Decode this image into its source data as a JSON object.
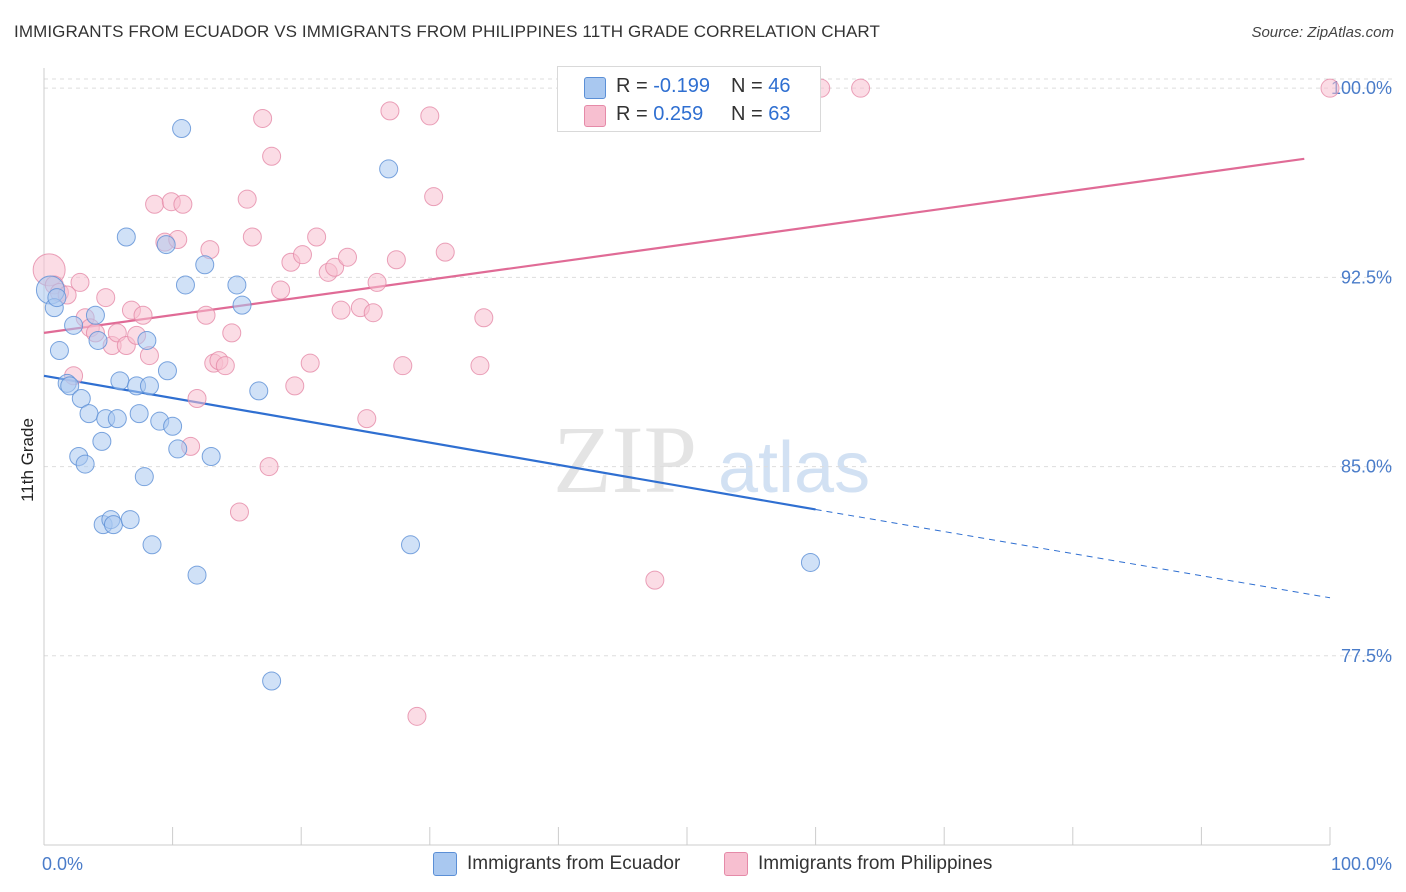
{
  "title": "IMMIGRANTS FROM ECUADOR VS IMMIGRANTS FROM PHILIPPINES 11TH GRADE CORRELATION CHART",
  "source": "Source: ZipAtlas.com",
  "watermark": {
    "zip": "ZIP",
    "atlas": "atlas"
  },
  "colors": {
    "ecuador_fill": "#a9c8f0",
    "ecuador_stroke": "#5b8fd6",
    "ecuador_line": "#2f6fd1",
    "philippines_fill": "#f7bfd0",
    "philippines_stroke": "#e58aa8",
    "philippines_line": "#e06b96",
    "tick_label": "#4a7cc9",
    "grid": "#dddddd"
  },
  "legend_top": {
    "rows": [
      {
        "r_label": "R =",
        "r_value": "-0.199",
        "n_label": "N =",
        "n_value": "46"
      },
      {
        "r_label": "R =",
        "r_value": "0.259",
        "n_label": "N =",
        "n_value": "63"
      }
    ]
  },
  "legend_bottom": [
    {
      "label": "Immigrants from Ecuador"
    },
    {
      "label": "Immigrants from Philippines"
    }
  ],
  "chart_data": {
    "type": "scatter",
    "title": "IMMIGRANTS FROM ECUADOR VS IMMIGRANTS FROM PHILIPPINES 11TH GRADE CORRELATION CHART",
    "xlabel": "",
    "ylabel": "11th Grade",
    "xlim": [
      0,
      100
    ],
    "ylim": [
      70.0,
      100.8
    ],
    "x_tick_labels": [
      {
        "value": 0,
        "label": "0.0%"
      },
      {
        "value": 100,
        "label": "100.0%"
      }
    ],
    "y_ticks": [
      {
        "value": 77.5,
        "label": "77.5%"
      },
      {
        "value": 85.0,
        "label": "85.0%"
      },
      {
        "value": 92.5,
        "label": "92.5%"
      },
      {
        "value": 100.0,
        "label": "100.0%"
      }
    ],
    "grid": true,
    "legend_position": "top-center",
    "series": [
      {
        "name": "Immigrants from Ecuador",
        "r": -0.199,
        "n": 46,
        "trend": {
          "x0": 0,
          "y0": 88.6,
          "x1": 60,
          "y1": 83.3,
          "dashed_to_x": 100,
          "dashed_to_y": 79.8
        },
        "points": [
          [
            0.5,
            92.0,
            14
          ],
          [
            0.8,
            91.3,
            9
          ],
          [
            1.2,
            89.6,
            9
          ],
          [
            1.8,
            88.3,
            9
          ],
          [
            2.0,
            88.2,
            9
          ],
          [
            2.3,
            90.6,
            9
          ],
          [
            2.7,
            85.4,
            9
          ],
          [
            2.9,
            87.7,
            9
          ],
          [
            3.2,
            85.1,
            9
          ],
          [
            3.5,
            87.1,
            9
          ],
          [
            4.0,
            91.0,
            9
          ],
          [
            4.2,
            90.0,
            9
          ],
          [
            4.5,
            86.0,
            9
          ],
          [
            4.6,
            82.7,
            9
          ],
          [
            4.8,
            86.9,
            9
          ],
          [
            5.2,
            82.9,
            9
          ],
          [
            5.4,
            82.7,
            9
          ],
          [
            5.7,
            86.9,
            9
          ],
          [
            5.9,
            88.4,
            9
          ],
          [
            6.4,
            94.1,
            9
          ],
          [
            6.7,
            82.9,
            9
          ],
          [
            7.2,
            88.2,
            9
          ],
          [
            7.4,
            87.1,
            9
          ],
          [
            7.8,
            84.6,
            9
          ],
          [
            8.0,
            90.0,
            9
          ],
          [
            8.2,
            88.2,
            9
          ],
          [
            8.4,
            81.9,
            9
          ],
          [
            9.0,
            86.8,
            9
          ],
          [
            9.5,
            93.8,
            9
          ],
          [
            9.6,
            88.8,
            9
          ],
          [
            10.0,
            86.6,
            9
          ],
          [
            10.4,
            85.7,
            9
          ],
          [
            10.7,
            98.4,
            9
          ],
          [
            11.0,
            92.2,
            9
          ],
          [
            11.9,
            80.7,
            9
          ],
          [
            12.5,
            93.0,
            9
          ],
          [
            13.0,
            85.4,
            9
          ],
          [
            15.0,
            92.2,
            9
          ],
          [
            15.4,
            91.4,
            9
          ],
          [
            16.7,
            88.0,
            9
          ],
          [
            17.7,
            76.5,
            9
          ],
          [
            26.8,
            96.8,
            9
          ],
          [
            28.5,
            81.9,
            9
          ],
          [
            59.6,
            81.2,
            9
          ],
          [
            1.0,
            91.7,
            9
          ],
          [
            3.0,
            86.9,
            0
          ]
        ]
      },
      {
        "name": "Immigrants from Philippines",
        "r": 0.259,
        "n": 63,
        "trend": {
          "x0": 0,
          "y0": 90.3,
          "x1": 98,
          "y1": 97.2
        },
        "points": [
          [
            0.4,
            92.8,
            16
          ],
          [
            0.8,
            92.2,
            9
          ],
          [
            1.2,
            91.9,
            9
          ],
          [
            1.8,
            91.8,
            9
          ],
          [
            2.3,
            88.6,
            9
          ],
          [
            2.8,
            92.3,
            9
          ],
          [
            3.2,
            90.9,
            9
          ],
          [
            3.6,
            90.5,
            9
          ],
          [
            4.0,
            90.3,
            9
          ],
          [
            4.8,
            91.7,
            9
          ],
          [
            5.3,
            89.8,
            9
          ],
          [
            5.7,
            90.3,
            9
          ],
          [
            6.4,
            89.8,
            9
          ],
          [
            6.8,
            91.2,
            9
          ],
          [
            7.2,
            90.2,
            9
          ],
          [
            7.7,
            91.0,
            9
          ],
          [
            8.2,
            89.4,
            9
          ],
          [
            8.6,
            95.4,
            9
          ],
          [
            9.4,
            93.9,
            9
          ],
          [
            9.9,
            95.5,
            9
          ],
          [
            10.4,
            94.0,
            9
          ],
          [
            10.8,
            95.4,
            9
          ],
          [
            11.4,
            85.8,
            9
          ],
          [
            11.9,
            87.7,
            9
          ],
          [
            12.6,
            91.0,
            9
          ],
          [
            12.9,
            93.6,
            9
          ],
          [
            13.2,
            89.1,
            9
          ],
          [
            13.6,
            89.2,
            9
          ],
          [
            14.1,
            89.0,
            9
          ],
          [
            14.6,
            90.3,
            9
          ],
          [
            15.2,
            83.2,
            9
          ],
          [
            15.8,
            95.6,
            9
          ],
          [
            16.2,
            94.1,
            9
          ],
          [
            17.0,
            98.8,
            9
          ],
          [
            17.5,
            85.0,
            9
          ],
          [
            17.7,
            97.3,
            9
          ],
          [
            18.4,
            92.0,
            9
          ],
          [
            19.2,
            93.1,
            9
          ],
          [
            19.5,
            88.2,
            9
          ],
          [
            20.1,
            93.4,
            9
          ],
          [
            20.7,
            89.1,
            9
          ],
          [
            21.2,
            94.1,
            9
          ],
          [
            22.1,
            92.7,
            9
          ],
          [
            22.6,
            92.9,
            9
          ],
          [
            23.1,
            91.2,
            9
          ],
          [
            23.6,
            93.3,
            9
          ],
          [
            24.6,
            91.3,
            9
          ],
          [
            25.1,
            86.9,
            9
          ],
          [
            25.6,
            91.1,
            9
          ],
          [
            25.9,
            92.3,
            9
          ],
          [
            26.9,
            99.1,
            9
          ],
          [
            27.4,
            93.2,
            9
          ],
          [
            27.9,
            89.0,
            9
          ],
          [
            29.0,
            75.1,
            9
          ],
          [
            30.0,
            98.9,
            9
          ],
          [
            30.3,
            95.7,
            9
          ],
          [
            31.2,
            93.5,
            9
          ],
          [
            33.9,
            89.0,
            9
          ],
          [
            34.2,
            90.9,
            9
          ],
          [
            47.5,
            80.5,
            9
          ],
          [
            60.4,
            100.0,
            9
          ],
          [
            63.5,
            100.0,
            9
          ],
          [
            100.0,
            100.0,
            9
          ]
        ]
      }
    ]
  }
}
